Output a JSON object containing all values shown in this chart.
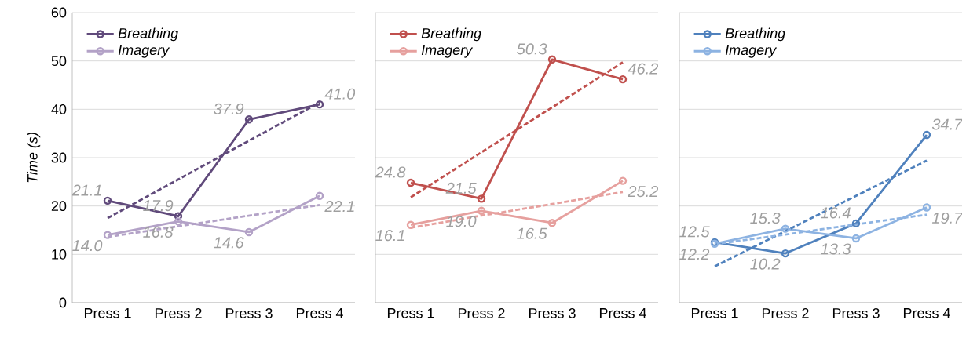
{
  "chart_data": [
    {
      "type": "line",
      "ylabel": "Time (s)",
      "categories": [
        "Press 1",
        "Press 2",
        "Press 3",
        "Press 4"
      ],
      "ylim": [
        0,
        60
      ],
      "yticks": [
        0,
        10,
        20,
        30,
        40,
        50,
        60
      ],
      "grid": "y",
      "legend": "top left",
      "marker": "circle",
      "series": [
        {
          "name": "Breathing",
          "color": "#604a7b",
          "values": [
            21.1,
            17.9,
            37.9,
            41.0
          ],
          "value_labels": [
            "21.1",
            "17.9",
            "37.9",
            "41.0"
          ]
        },
        {
          "name": "Imagery",
          "color": "#b3a2c7",
          "values": [
            14.0,
            16.8,
            14.6,
            22.1
          ],
          "value_labels": [
            "14.0",
            "16.8",
            "14.6",
            "22.1"
          ]
        },
        {
          "color": "#604a7b",
          "values": [
            17.5,
            25.5,
            33.5,
            41.4
          ],
          "marker": "none",
          "line_style": "dashed"
        },
        {
          "color": "#b3a2c7",
          "values": [
            13.6,
            15.8,
            18.0,
            20.2
          ],
          "marker": "none",
          "line_style": "dashed"
        }
      ]
    },
    {
      "type": "line",
      "categories": [
        "Press 1",
        "Press 2",
        "Press 3",
        "Press 4"
      ],
      "ylim": [
        0,
        60
      ],
      "yticks": [
        0,
        10,
        20,
        30,
        40,
        50,
        60
      ],
      "grid": "y",
      "legend": "top left",
      "marker": "circle",
      "tick_labels": "x",
      "series": [
        {
          "name": "Breathing",
          "color": "#c0504d",
          "values": [
            24.8,
            21.5,
            50.3,
            46.2
          ],
          "value_labels": [
            "24.8",
            "21.5",
            "50.3",
            "46.2"
          ]
        },
        {
          "name": "Imagery",
          "color": "#e6a09e",
          "values": [
            16.1,
            19.0,
            16.5,
            25.2
          ],
          "value_labels": [
            "16.1",
            "19.0",
            "16.5",
            "25.2"
          ]
        },
        {
          "color": "#c0504d",
          "values": [
            21.8,
            31.1,
            40.4,
            49.7
          ],
          "marker": "none",
          "line_style": "dashed"
        },
        {
          "color": "#e6a09e",
          "values": [
            15.5,
            18.0,
            20.4,
            22.9
          ],
          "marker": "none",
          "line_style": "dashed"
        }
      ]
    },
    {
      "type": "line",
      "categories": [
        "Press 1",
        "Press 2",
        "Press 3",
        "Press 4"
      ],
      "ylim": [
        0,
        60
      ],
      "yticks": [
        0,
        10,
        20,
        30,
        40,
        50,
        60
      ],
      "grid": "y",
      "legend": "top left",
      "marker": "circle",
      "tick_labels": "x",
      "series": [
        {
          "name": "Breathing",
          "color": "#4f81bd",
          "values": [
            12.5,
            10.2,
            16.4,
            34.7
          ],
          "value_labels": [
            "12.5",
            "10.2",
            "16.4",
            "34.7"
          ]
        },
        {
          "name": "Imagery",
          "color": "#8db3e2",
          "values": [
            12.2,
            15.3,
            13.3,
            19.7
          ],
          "value_labels": [
            "12.2",
            "15.3",
            "13.3",
            "19.7"
          ]
        },
        {
          "color": "#4f81bd",
          "values": [
            7.5,
            14.8,
            22.1,
            29.4
          ],
          "marker": "none",
          "line_style": "dashed"
        },
        {
          "color": "#8db3e2",
          "values": [
            12.1,
            14.1,
            16.2,
            18.2
          ],
          "marker": "none",
          "line_style": "dashed"
        }
      ]
    }
  ]
}
